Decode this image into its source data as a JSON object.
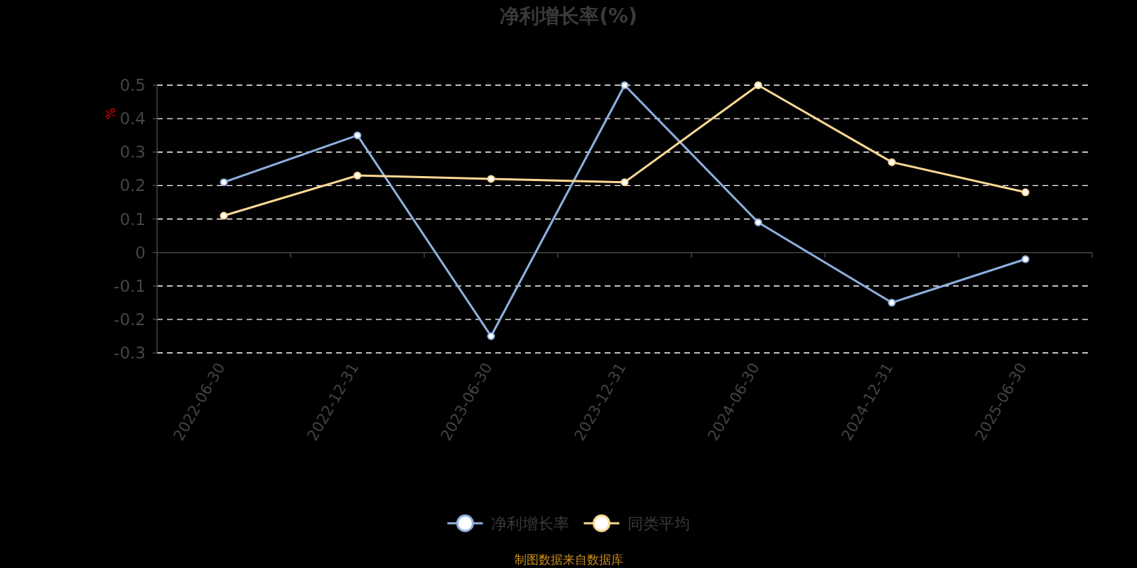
{
  "chart_data": {
    "type": "line",
    "title": "净利增长率(%)",
    "ylabel": "%",
    "categories": [
      "2022-06-30",
      "2022-12-31",
      "2023-06-30",
      "2023-12-31",
      "2024-06-30",
      "2024-12-31",
      "2025-06-30"
    ],
    "series": [
      {
        "name": "净利增长率",
        "color": "#8eb0e0",
        "values": [
          0.21,
          0.35,
          -0.25,
          0.5,
          0.09,
          -0.15,
          -0.02
        ]
      },
      {
        "name": "同类平均",
        "color": "#fdd894",
        "values": [
          0.11,
          0.23,
          0.22,
          0.21,
          0.5,
          0.27,
          0.18
        ]
      }
    ],
    "ylim": [
      -0.3,
      0.5
    ],
    "yticks": [
      -0.3,
      -0.2,
      -0.1,
      0,
      0.1,
      0.2,
      0.3,
      0.4,
      0.5
    ],
    "grid": "y",
    "legend": "bottom",
    "marker": "circle",
    "annotations": [
      "制图数据来自数据库"
    ]
  }
}
